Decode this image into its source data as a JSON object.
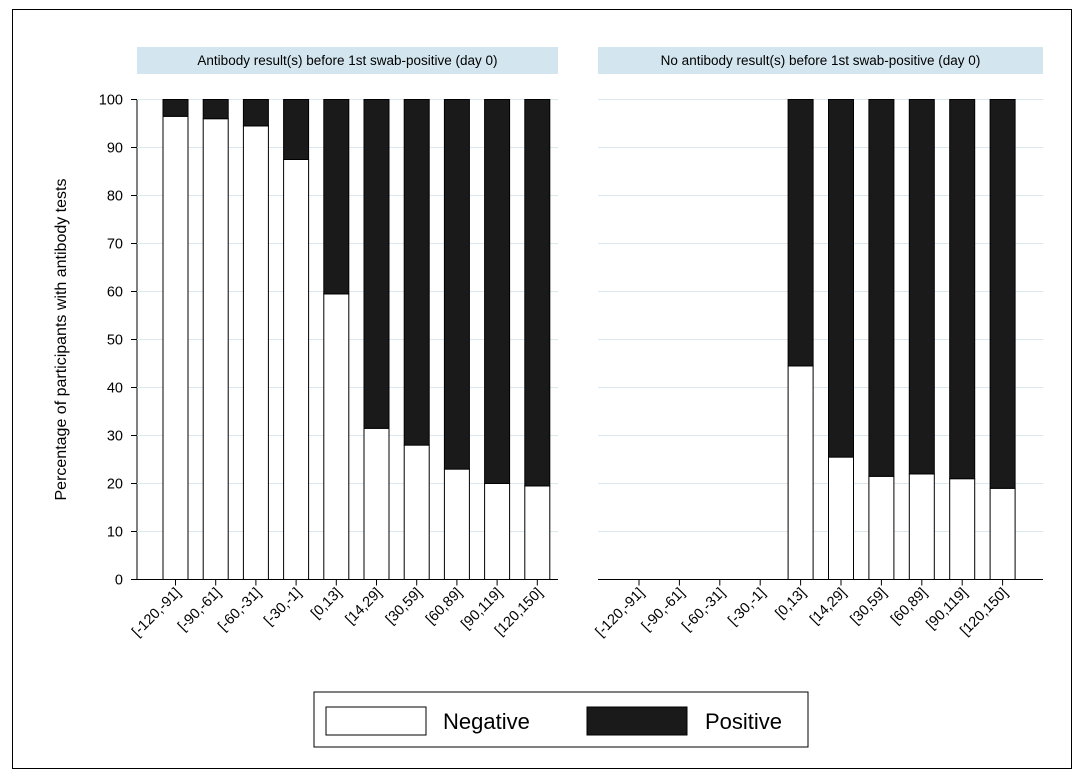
{
  "chart_data": {
    "type": "bar",
    "stacked": true,
    "ylabel": "Percentage of participants with antibody tests",
    "ylim": [
      0,
      100
    ],
    "yticks": [
      0,
      10,
      20,
      30,
      40,
      50,
      60,
      70,
      80,
      90,
      100
    ],
    "grid": true,
    "legend": {
      "position": "bottom",
      "entries": [
        "Negative",
        "Positive"
      ]
    },
    "colors": {
      "Negative": "#ffffff",
      "Positive": "#1a1a1a",
      "panel_header": "#d3e5ee",
      "grid": "#dbe8ee"
    },
    "categories": [
      "[-120,-91]",
      "[-90,-61]",
      "[-60,-31]",
      "[-30,-1]",
      "[0,13]",
      "[14,29]",
      "[30,59]",
      "[60,89]",
      "[90,119]",
      "[120,150]"
    ],
    "panels": [
      {
        "title": "Antibody result(s) before 1st swab-positive (day 0)",
        "series": [
          {
            "name": "Negative",
            "values": [
              96.5,
              96,
              94.5,
              87.5,
              59.5,
              31.5,
              28,
              23,
              20,
              19.5
            ]
          },
          {
            "name": "Positive",
            "values": [
              3.5,
              4,
              5.5,
              12.5,
              40.5,
              68.5,
              72,
              77,
              80,
              80.5
            ]
          }
        ]
      },
      {
        "title": "No antibody result(s) before 1st swab-positive (day 0)",
        "series": [
          {
            "name": "Negative",
            "values": [
              null,
              null,
              null,
              null,
              44.5,
              25.5,
              21.5,
              22,
              21,
              19
            ]
          },
          {
            "name": "Positive",
            "values": [
              null,
              null,
              null,
              null,
              55.5,
              74.5,
              78.5,
              78,
              79,
              81
            ]
          }
        ]
      }
    ]
  }
}
